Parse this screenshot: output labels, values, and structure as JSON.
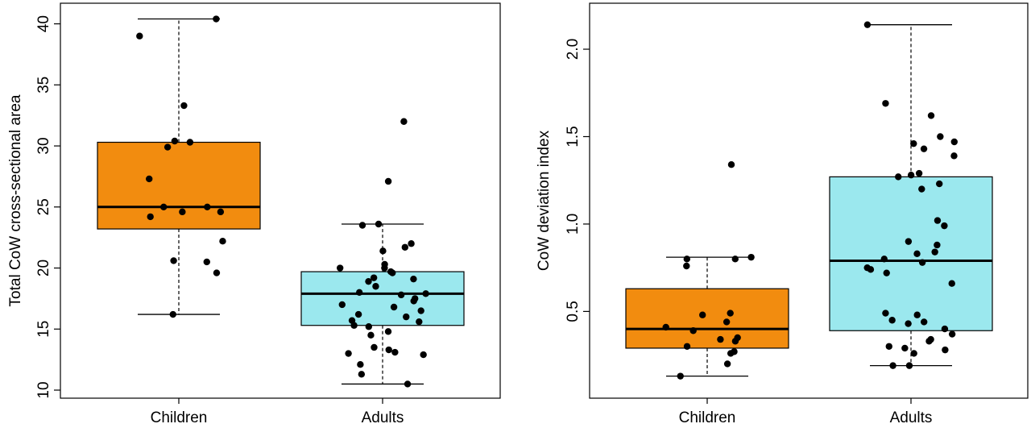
{
  "chart_data": [
    {
      "type": "boxplot",
      "title": "",
      "xlabel": "",
      "ylabel": "Total CoW cross-sectional area",
      "ylim": [
        10,
        40.5
      ],
      "y_ticks": [
        10,
        15,
        20,
        25,
        30,
        35,
        40
      ],
      "categories": [
        "Children",
        "Adults"
      ],
      "colors": [
        "#F28C0F",
        "#9BE8EE"
      ],
      "boxes": [
        {
          "category": "Children",
          "whisker_low": 16.2,
          "q1": 23.2,
          "median": 25.0,
          "q3": 30.3,
          "whisker_high": 40.4,
          "points": [
            40.4,
            39.0,
            33.3,
            29.9,
            30.4,
            30.3,
            27.3,
            25.0,
            24.6,
            24.6,
            25.0,
            24.2,
            22.2,
            20.5,
            20.6,
            19.6,
            16.2
          ]
        },
        {
          "category": "Adults",
          "whisker_low": 10.5,
          "q1": 15.3,
          "median": 17.9,
          "q3": 19.7,
          "whisker_high": 23.6,
          "points": [
            32.0,
            27.1,
            23.6,
            23.5,
            22.0,
            21.7,
            21.4,
            20.3,
            20.0,
            20.0,
            19.7,
            19.6,
            19.2,
            19.1,
            18.9,
            18.5,
            18.0,
            17.9,
            17.8,
            17.5,
            17.3,
            17.0,
            16.8,
            16.5,
            16.2,
            16.0,
            15.7,
            15.6,
            15.3,
            15.2,
            14.8,
            14.5,
            13.5,
            13.3,
            13.0,
            13.1,
            12.9,
            12.1,
            11.3,
            10.5
          ]
        }
      ]
    },
    {
      "type": "boxplot",
      "title": "",
      "xlabel": "",
      "ylabel": "CoW deviation index",
      "ylim": [
        0.05,
        2.18
      ],
      "y_ticks": [
        0.5,
        1.0,
        1.5,
        2.0
      ],
      "y_tick_labels": [
        "0.5",
        "1.0",
        "1.5",
        "2.0"
      ],
      "categories": [
        "Children",
        "Adults"
      ],
      "colors": [
        "#F28C0F",
        "#9BE8EE"
      ],
      "boxes": [
        {
          "category": "Children",
          "whisker_low": 0.13,
          "q1": 0.29,
          "median": 0.4,
          "q3": 0.63,
          "whisker_high": 0.81,
          "points": [
            1.34,
            0.81,
            0.8,
            0.8,
            0.76,
            0.49,
            0.48,
            0.44,
            0.41,
            0.39,
            0.35,
            0.34,
            0.33,
            0.3,
            0.27,
            0.26,
            0.2,
            0.13
          ]
        },
        {
          "category": "Adults",
          "whisker_low": 0.19,
          "q1": 0.39,
          "median": 0.79,
          "q3": 1.27,
          "whisker_high": 2.14,
          "points": [
            2.14,
            1.69,
            1.62,
            1.5,
            1.47,
            1.46,
            1.43,
            1.39,
            1.29,
            1.28,
            1.27,
            1.23,
            1.2,
            1.02,
            0.99,
            0.9,
            0.88,
            0.84,
            0.83,
            0.8,
            0.78,
            0.75,
            0.74,
            0.72,
            0.66,
            0.49,
            0.48,
            0.45,
            0.44,
            0.43,
            0.4,
            0.37,
            0.34,
            0.33,
            0.3,
            0.29,
            0.28,
            0.26,
            0.19,
            0.19
          ]
        }
      ]
    }
  ]
}
